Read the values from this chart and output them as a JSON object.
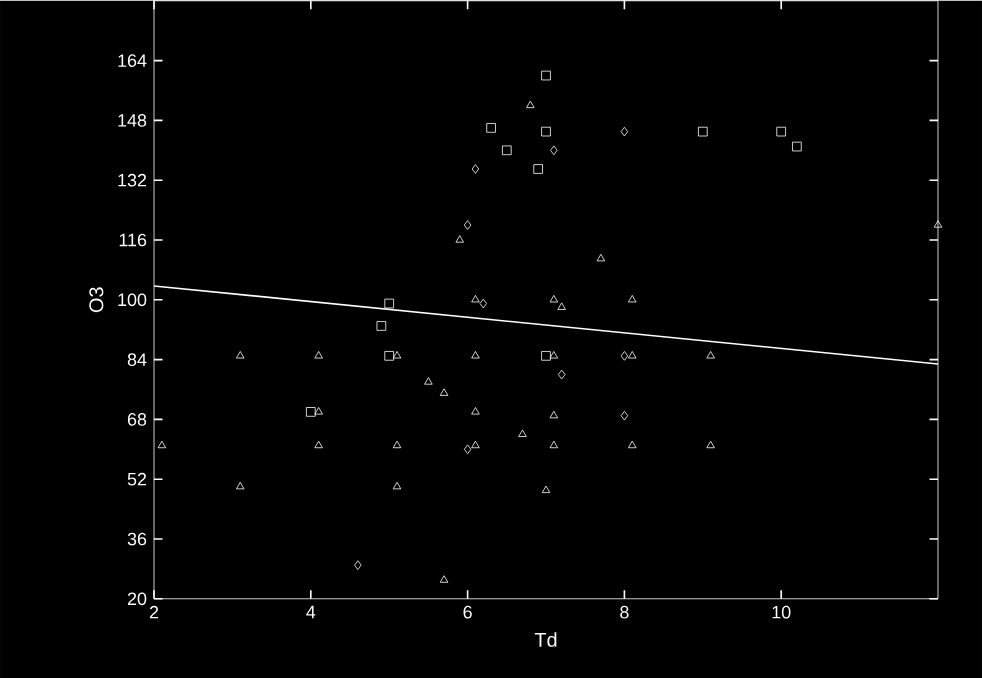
{
  "chart_data": {
    "type": "scatter",
    "xlabel": "Td",
    "ylabel": "O3",
    "xlim": [
      2,
      12
    ],
    "ylim": [
      20,
      180
    ],
    "xticks": [
      2,
      4,
      6,
      8,
      10
    ],
    "yticks": [
      20,
      36,
      52,
      68,
      84,
      100,
      116,
      132,
      148,
      164
    ],
    "series": [
      {
        "marker": "triangle",
        "color": "#ffffff",
        "x": [
          6.8,
          5.9,
          6.1,
          7.1,
          7.2,
          7.7,
          8.1,
          12.0,
          3.1,
          4.1,
          5.1,
          6.1,
          7.1,
          8.1,
          9.1,
          5.5,
          5.7,
          4.1,
          6.1,
          7.1,
          6.7,
          2.1,
          4.1,
          5.1,
          6.1,
          7.1,
          8.1,
          9.1,
          3.1,
          5.1,
          7.0,
          5.7
        ],
        "values": [
          152,
          116,
          100,
          100,
          98,
          111,
          100,
          120,
          85,
          85,
          85,
          85,
          85,
          85,
          85,
          78,
          75,
          70,
          70,
          69,
          64,
          61,
          61,
          61,
          61,
          61,
          61,
          61,
          50,
          50,
          49,
          25
        ]
      },
      {
        "marker": "square",
        "color": "#ffffff",
        "x": [
          7.0,
          6.3,
          7.0,
          9.0,
          10.0,
          10.2,
          6.5,
          6.9,
          5.0,
          4.9,
          5.0,
          7.0,
          4.0
        ],
        "values": [
          160,
          146,
          145,
          145,
          145,
          141,
          140,
          135,
          99,
          93,
          85,
          85,
          70
        ]
      },
      {
        "marker": "diamond",
        "color": "#ffffff",
        "x": [
          8.0,
          7.1,
          6.1,
          6.0,
          6.2,
          8.0,
          7.2,
          8.0,
          4.6,
          6.0
        ],
        "values": [
          145,
          140,
          135,
          120,
          99,
          85,
          80,
          69,
          29,
          60
        ]
      },
      {
        "type": "line",
        "marker": "none",
        "color": "#ffffff",
        "x": [
          2,
          12
        ],
        "values": [
          103.7,
          82.8
        ]
      }
    ]
  }
}
